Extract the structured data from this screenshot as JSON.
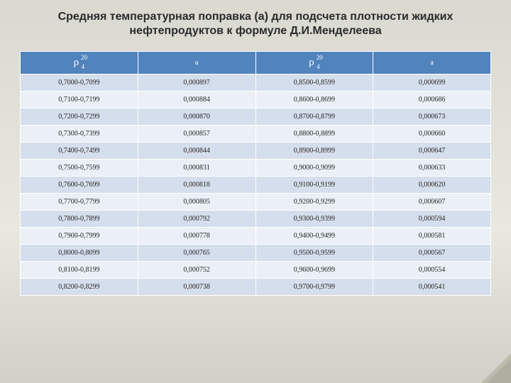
{
  "title": "Средняя температурная поправка (а) для подсчета плотности жидких нефтепродуктов к формуле Д.И.Менделеева",
  "title_fontsize": 16,
  "title_color": "#2a2a2a",
  "table": {
    "header_bg": "#5183bd",
    "header_fg": "#ffffff",
    "row_odd_bg": "#d5deec",
    "row_even_bg": "#ebf0f7",
    "border_color": "#ffffff",
    "cell_fontsize": 10,
    "columns": [
      {
        "kind": "rho",
        "sup": "20",
        "sub": "4"
      },
      {
        "kind": "text",
        "label": "а"
      },
      {
        "kind": "rho",
        "sup": "20",
        "sub": "4"
      },
      {
        "kind": "text",
        "label": "а"
      }
    ],
    "rows": [
      [
        "0,7000-0,7099",
        "0,000897",
        "0,8500-0,8599",
        "0,000699"
      ],
      [
        "0,7100-0,7199",
        "0,000884",
        "0,8600-0,8699",
        "0,000686"
      ],
      [
        "0,7200-0,7299",
        "0,000870",
        "0,8700-0,8799",
        "0,000673"
      ],
      [
        "0,7300-0,7399",
        "0,000857",
        "0,8800-0,8899",
        "0,000660"
      ],
      [
        "0,7400-0,7499",
        "0,000844",
        "0,8900-0,8999",
        "0,000647"
      ],
      [
        "0,7500-0,7599",
        "0,000831",
        "0,9000-0,9099",
        "0,000633"
      ],
      [
        "0,7600-0,7699",
        "0,000818",
        "0,9100-0,9199",
        "0,000620"
      ],
      [
        "0,7700-0,7799",
        "0,000805",
        "0,9200-0,9299",
        "0,000607"
      ],
      [
        "0,7800-0,7899",
        "0,000792",
        "0,9300-0,9399",
        "0,000594"
      ],
      [
        "0,7900-0,7999",
        "0,000778",
        "0,9400-0,9499",
        "0,000581"
      ],
      [
        "0,8000-0,8099",
        "0,000765",
        "0,9500-0,9599",
        "0,000567"
      ],
      [
        "0,8100-0,8199",
        "0,000752",
        "0,9600-0,9699",
        "0,000554"
      ],
      [
        "0,8200-0,8299",
        "0,000738",
        "0,9700-0,9799",
        "0,000541"
      ]
    ]
  },
  "background": {
    "top": "#d9d9d0",
    "mid": "#e8e8e0",
    "bottom": "#d0d0c8"
  }
}
